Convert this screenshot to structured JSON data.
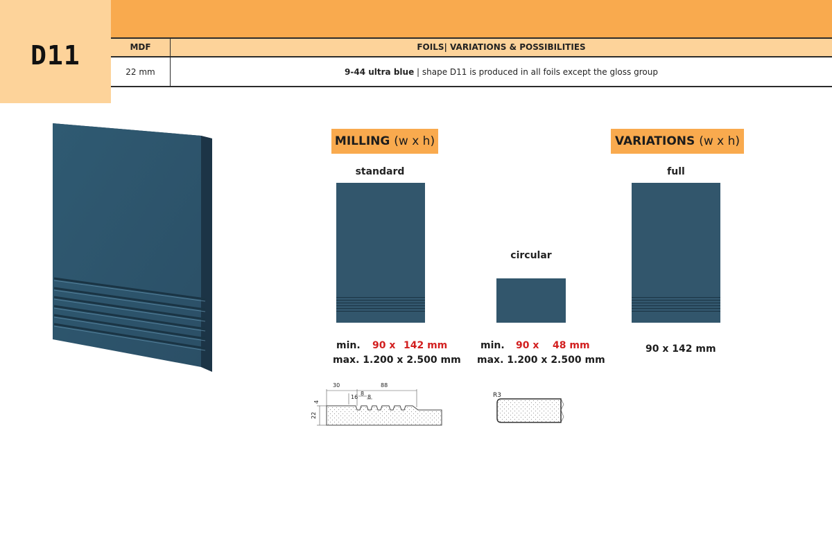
{
  "code": "D11",
  "header": {
    "material_header": "MDF",
    "foils_header": "FOILS| VARIATIONS & POSSIBILITIES",
    "thickness": "22 mm",
    "foil_name": "9-44 ultra blue",
    "foil_note": " | shape D11 is produced in all foils except the gloss group"
  },
  "milling": {
    "label": "MILLING",
    "label_sub": "(w x h)",
    "standard": {
      "caption": "standard",
      "min_label": "min.",
      "min_w": "90 x",
      "min_h": "142 mm",
      "max_text": "max. 1.200 x 2.500 mm"
    },
    "circular": {
      "caption": "circular",
      "min_label": "min.",
      "min_w": "90 x",
      "min_h": "48 mm",
      "max_text": "max. 1.200 x 2.500 mm"
    }
  },
  "variations": {
    "label": "VARIATIONS",
    "label_sub": "(w x h)",
    "full": {
      "caption": "full",
      "size": "90 x 142 mm"
    }
  },
  "profile_drawing": {
    "d30": "30",
    "d88": "88",
    "d16": "16",
    "d8a": "8",
    "d8b": "8",
    "d4": "4",
    "d22": "22"
  },
  "edge_drawing": {
    "radius": "R3"
  },
  "colors": {
    "panel": "#32566c",
    "accent_orange": "#f9aa4e",
    "light_orange": "#fdd39a",
    "min_red": "#d21f1f"
  }
}
